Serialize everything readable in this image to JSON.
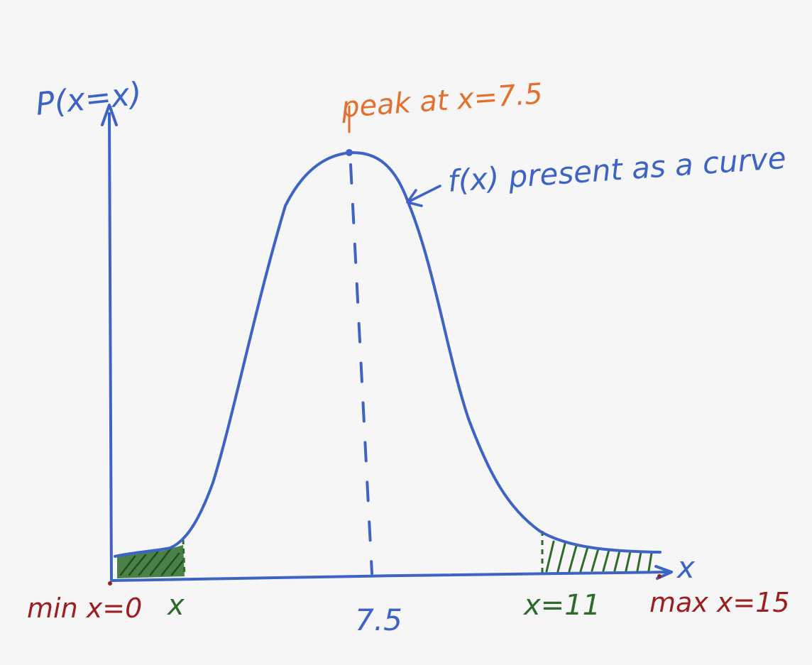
{
  "labels": {
    "y_axis": "P(x=x)",
    "x_axis": "x",
    "peak": "peak at x=7.5",
    "curve_note": "f(x) present as a curve",
    "min": "min x=0",
    "x_marker": "x",
    "center_tick": "7.5",
    "right_marker": "x=11",
    "max": "max x=15"
  },
  "colors": {
    "curve": "#3d63c4",
    "peak": "#e3702e",
    "shade": "#2e6b2a",
    "bounds": "#9b1f1f"
  },
  "icons": {
    "y_axis_arrow": "arrow-up-icon",
    "x_axis_arrow": "arrow-right-icon",
    "note_arrow": "arrow-left-icon"
  }
}
